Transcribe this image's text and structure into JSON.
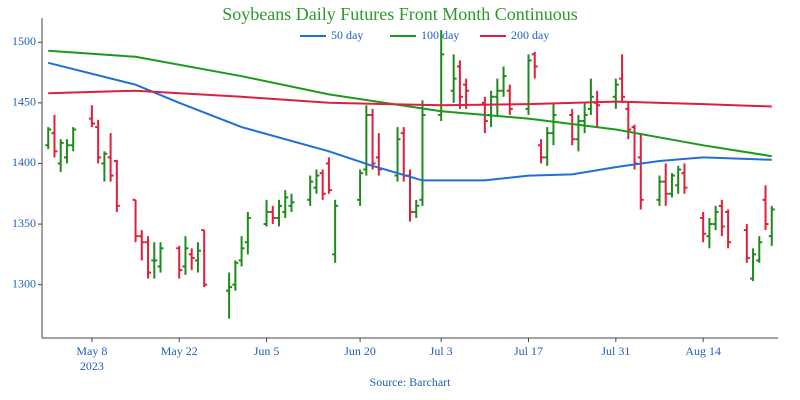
{
  "chart_data": {
    "type": "ohlc",
    "title": "Soybeans Daily Futures Front Month Continuous",
    "source": "Source: Barchart",
    "up_color": "#1e8a1e",
    "down_color": "#e0203a",
    "grid": false,
    "xlim": [
      "2023-04-30",
      "2023-08-26"
    ],
    "xticks": [
      {
        "value": "2023-05-08",
        "label": "May 8\n2023"
      },
      {
        "value": "2023-05-22",
        "label": "May 22"
      },
      {
        "value": "2023-06-05",
        "label": "Jun 5"
      },
      {
        "value": "2023-06-20",
        "label": "Jun 20"
      },
      {
        "value": "2023-07-03",
        "label": "Jul 3"
      },
      {
        "value": "2023-07-17",
        "label": "Jul 17"
      },
      {
        "value": "2023-07-31",
        "label": "Jul 31"
      },
      {
        "value": "2023-08-14",
        "label": "Aug 14"
      }
    ],
    "ylim": [
      1256,
      1520
    ],
    "yticks": [
      1300,
      1350,
      1400,
      1450,
      1500
    ],
    "x": [
      "2023-05-01",
      "2023-05-02",
      "2023-05-03",
      "2023-05-04",
      "2023-05-05",
      "2023-05-08",
      "2023-05-09",
      "2023-05-10",
      "2023-05-11",
      "2023-05-12",
      "2023-05-15",
      "2023-05-16",
      "2023-05-17",
      "2023-05-18",
      "2023-05-19",
      "2023-05-22",
      "2023-05-23",
      "2023-05-24",
      "2023-05-25",
      "2023-05-26",
      "2023-05-30",
      "2023-05-31",
      "2023-06-01",
      "2023-06-02",
      "2023-06-05",
      "2023-06-06",
      "2023-06-07",
      "2023-06-08",
      "2023-06-09",
      "2023-06-12",
      "2023-06-13",
      "2023-06-14",
      "2023-06-15",
      "2023-06-16",
      "2023-06-20",
      "2023-06-21",
      "2023-06-22",
      "2023-06-23",
      "2023-06-26",
      "2023-06-27",
      "2023-06-28",
      "2023-06-29",
      "2023-06-30",
      "2023-07-03",
      "2023-07-05",
      "2023-07-06",
      "2023-07-07",
      "2023-07-10",
      "2023-07-11",
      "2023-07-12",
      "2023-07-13",
      "2023-07-14",
      "2023-07-17",
      "2023-07-18",
      "2023-07-19",
      "2023-07-20",
      "2023-07-21",
      "2023-07-24",
      "2023-07-25",
      "2023-07-26",
      "2023-07-27",
      "2023-07-28",
      "2023-07-31",
      "2023-08-01",
      "2023-08-02",
      "2023-08-03",
      "2023-08-04",
      "2023-08-07",
      "2023-08-08",
      "2023-08-09",
      "2023-08-10",
      "2023-08-11",
      "2023-08-14",
      "2023-08-15",
      "2023-08-16",
      "2023-08-17",
      "2023-08-18",
      "2023-08-21",
      "2023-08-22",
      "2023-08-23",
      "2023-08-24",
      "2023-08-25"
    ],
    "open": [
      1415,
      1425,
      1400,
      1405,
      1415,
      1437,
      1430,
      1400,
      1405,
      1402,
      1370,
      1340,
      1335,
      1320,
      1315,
      1330,
      1315,
      1325,
      1320,
      1345,
      1295,
      1300,
      1320,
      1335,
      1350,
      1360,
      1355,
      1360,
      1365,
      1370,
      1380,
      1392,
      1400,
      1325,
      1370,
      1395,
      1440,
      1405,
      1390,
      1425,
      1390,
      1360,
      1370,
      1440,
      1460,
      1480,
      1465,
      1450,
      1440,
      1455,
      1460,
      1460,
      1445,
      1490,
      1415,
      1405,
      1425,
      1440,
      1420,
      1435,
      1445,
      1450,
      1455,
      1470,
      1445,
      1430,
      1405,
      1370,
      1385,
      1375,
      1382,
      1392,
      1355,
      1340,
      1350,
      1365,
      1360,
      1345,
      1305,
      1320,
      1370,
      1340
    ],
    "high": [
      1430,
      1440,
      1420,
      1420,
      1430,
      1448,
      1436,
      1410,
      1425,
      1403,
      1370,
      1345,
      1340,
      1335,
      1335,
      1332,
      1340,
      1330,
      1335,
      1345,
      1310,
      1320,
      1340,
      1360,
      1370,
      1365,
      1370,
      1378,
      1375,
      1390,
      1395,
      1395,
      1405,
      1370,
      1395,
      1448,
      1445,
      1425,
      1430,
      1430,
      1395,
      1370,
      1452,
      1510,
      1490,
      1485,
      1470,
      1455,
      1460,
      1470,
      1480,
      1465,
      1490,
      1492,
      1420,
      1430,
      1450,
      1445,
      1440,
      1450,
      1470,
      1460,
      1470,
      1490,
      1450,
      1432,
      1425,
      1390,
      1400,
      1392,
      1398,
      1400,
      1360,
      1355,
      1365,
      1370,
      1362,
      1350,
      1330,
      1340,
      1382,
      1365
    ],
    "low": [
      1412,
      1405,
      1393,
      1400,
      1410,
      1430,
      1400,
      1385,
      1385,
      1360,
      1335,
      1320,
      1305,
      1305,
      1310,
      1305,
      1308,
      1312,
      1310,
      1298,
      1272,
      1295,
      1315,
      1325,
      1348,
      1350,
      1348,
      1355,
      1360,
      1365,
      1375,
      1370,
      1375,
      1318,
      1365,
      1390,
      1395,
      1390,
      1385,
      1385,
      1352,
      1355,
      1365,
      1435,
      1450,
      1445,
      1445,
      1425,
      1430,
      1440,
      1455,
      1440,
      1440,
      1470,
      1400,
      1398,
      1415,
      1415,
      1410,
      1425,
      1440,
      1430,
      1445,
      1450,
      1420,
      1395,
      1362,
      1365,
      1365,
      1372,
      1375,
      1375,
      1335,
      1330,
      1345,
      1340,
      1330,
      1318,
      1303,
      1318,
      1345,
      1332
    ],
    "close": [
      1428,
      1410,
      1417,
      1415,
      1428,
      1433,
      1405,
      1408,
      1390,
      1365,
      1340,
      1335,
      1310,
      1320,
      1330,
      1312,
      1330,
      1322,
      1328,
      1300,
      1298,
      1318,
      1330,
      1355,
      1360,
      1355,
      1365,
      1372,
      1368,
      1385,
      1390,
      1375,
      1378,
      1365,
      1392,
      1440,
      1400,
      1395,
      1420,
      1390,
      1360,
      1365,
      1440,
      1490,
      1470,
      1455,
      1460,
      1435,
      1455,
      1460,
      1472,
      1445,
      1485,
      1480,
      1405,
      1425,
      1440,
      1420,
      1435,
      1440,
      1455,
      1448,
      1465,
      1455,
      1428,
      1400,
      1370,
      1385,
      1375,
      1390,
      1395,
      1380,
      1342,
      1350,
      1360,
      1348,
      1335,
      1322,
      1325,
      1335,
      1350,
      1362
    ],
    "lines": [
      {
        "name": "50 day",
        "color": "#1f6fd6",
        "x": [
          "2023-05-01",
          "2023-05-15",
          "2023-05-22",
          "2023-06-01",
          "2023-06-15",
          "2023-06-22",
          "2023-06-30",
          "2023-07-10",
          "2023-07-17",
          "2023-07-24",
          "2023-07-31",
          "2023-08-07",
          "2023-08-14",
          "2023-08-25"
        ],
        "values": [
          1483,
          1465,
          1450,
          1430,
          1410,
          1398,
          1386,
          1386,
          1390,
          1391,
          1397,
          1402,
          1405,
          1403
        ]
      },
      {
        "name": "100 day",
        "color": "#1a9a1a",
        "x": [
          "2023-05-01",
          "2023-05-15",
          "2023-06-01",
          "2023-06-15",
          "2023-07-03",
          "2023-07-17",
          "2023-07-31",
          "2023-08-14",
          "2023-08-25"
        ],
        "values": [
          1493,
          1488,
          1472,
          1457,
          1443,
          1437,
          1428,
          1415,
          1406
        ]
      },
      {
        "name": "200 day",
        "color": "#dc2040",
        "x": [
          "2023-05-01",
          "2023-05-15",
          "2023-06-01",
          "2023-06-15",
          "2023-07-03",
          "2023-07-17",
          "2023-07-31",
          "2023-08-14",
          "2023-08-25"
        ],
        "values": [
          1458,
          1460,
          1455,
          1450,
          1448,
          1449,
          1451,
          1449,
          1447
        ]
      }
    ]
  }
}
